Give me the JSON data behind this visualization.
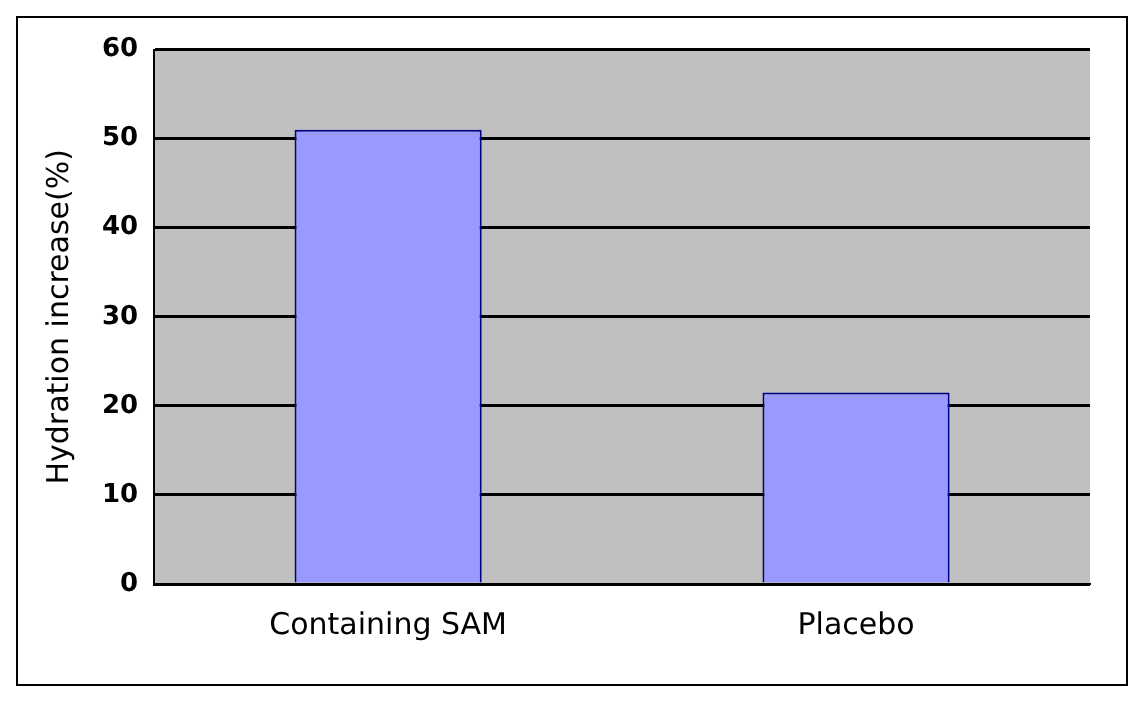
{
  "chart_data": {
    "type": "bar",
    "ylabel": "Hydration increase(%)",
    "categories": [
      "Containing SAM",
      "Placebo"
    ],
    "values": [
      51,
      21.5
    ],
    "color": "#9999ff",
    "ylim": [
      0,
      60
    ],
    "yticks": [
      0,
      10,
      20,
      30,
      40,
      50,
      60
    ],
    "grid": "y",
    "legend": false
  }
}
